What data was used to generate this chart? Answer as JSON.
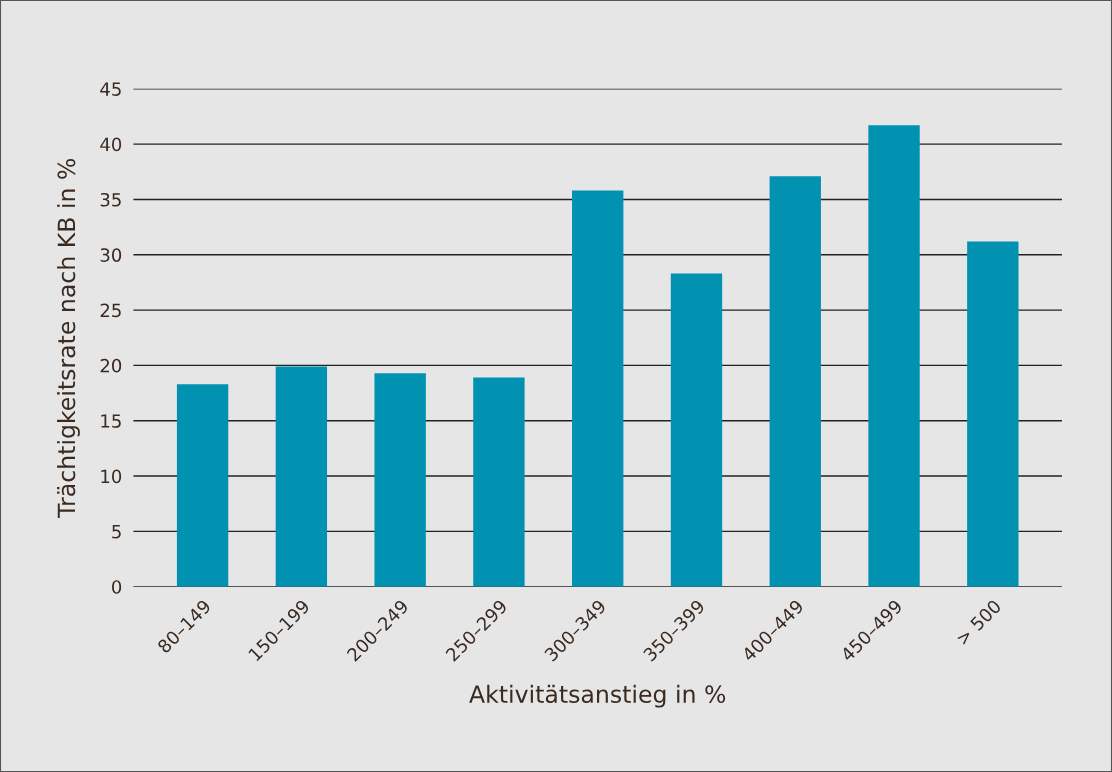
{
  "chart_data": {
    "type": "bar",
    "xlabel": "Aktivitätsanstieg in %",
    "ylabel": "Trächtigkeitsrate nach KB in %",
    "categories": [
      "80–149",
      "150–199",
      "200–249",
      "250–299",
      "300–349",
      "350–399",
      "400–449",
      "450–499",
      "> 500"
    ],
    "values": [
      18.3,
      19.9,
      19.3,
      18.9,
      35.8,
      28.3,
      37.1,
      41.7,
      31.2
    ],
    "color": "#0092b0",
    "ylim": [
      0,
      45
    ],
    "yticks": [
      0,
      5,
      10,
      15,
      20,
      25,
      30,
      35,
      40,
      45
    ],
    "grid": "y"
  }
}
